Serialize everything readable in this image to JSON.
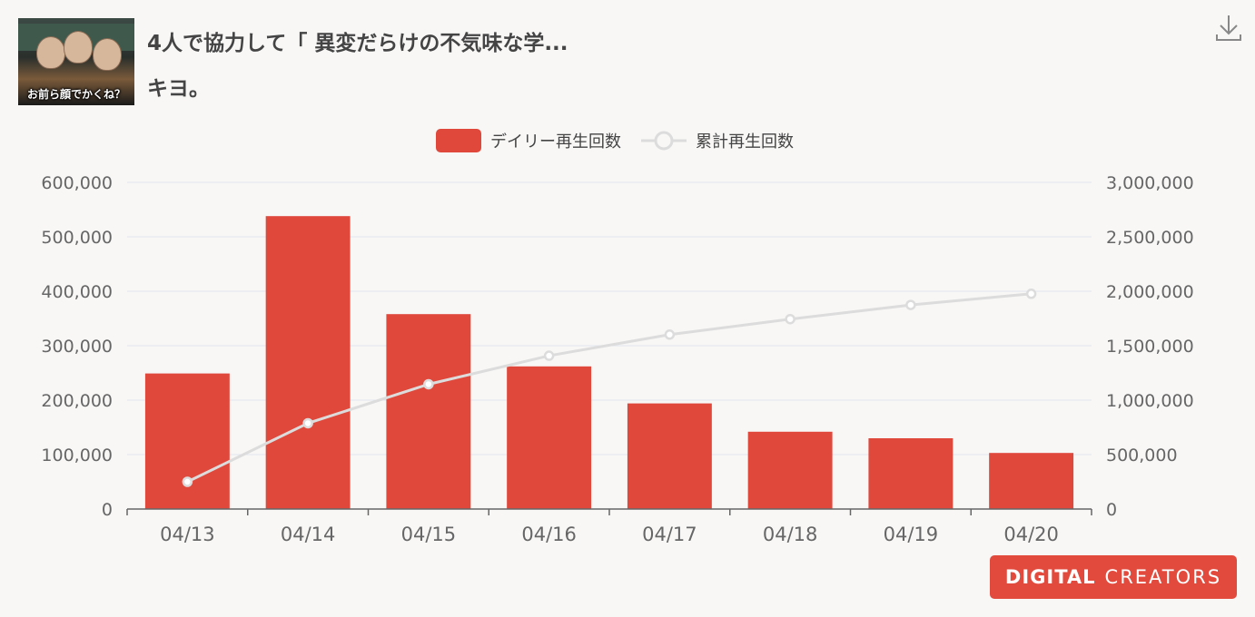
{
  "header": {
    "title": "4人で協力して「 異変だらけの不気味な学...",
    "channel": "キヨ。",
    "thumbnail_caption": "お前ら顔でかくね？"
  },
  "brand": {
    "part1": "DIGITAL",
    "part2": "CREATORS",
    "color": "#e24a3e"
  },
  "icons": {
    "download": "download-icon"
  },
  "colors": {
    "bar": "#e0483c",
    "line": "#dcdcdc",
    "grid": "#e0e6ee",
    "axis": "#666666"
  },
  "chart_data": {
    "type": "bar",
    "categories": [
      "04/13",
      "04/14",
      "04/15",
      "04/16",
      "04/17",
      "04/18",
      "04/19",
      "04/20"
    ],
    "series": [
      {
        "name": "デイリー再生回数",
        "type": "bar",
        "axis": "left",
        "values": [
          249000,
          538000,
          358000,
          262000,
          194000,
          142000,
          130000,
          103000
        ]
      },
      {
        "name": "累計再生回数",
        "type": "line",
        "axis": "right",
        "values": [
          250000,
          788000,
          1146000,
          1408000,
          1602000,
          1744000,
          1874000,
          1977000
        ]
      }
    ],
    "y_left": {
      "min": 0,
      "max": 600000,
      "ticks": [
        "0",
        "100,000",
        "200,000",
        "300,000",
        "400,000",
        "500,000",
        "600,000"
      ]
    },
    "y_right": {
      "min": 0,
      "max": 3000000,
      "ticks": [
        "0",
        "500,000",
        "1,000,000",
        "1,500,000",
        "2,000,000",
        "2,500,000",
        "3,000,000"
      ]
    },
    "legend_position": "top-center",
    "grid": true
  }
}
